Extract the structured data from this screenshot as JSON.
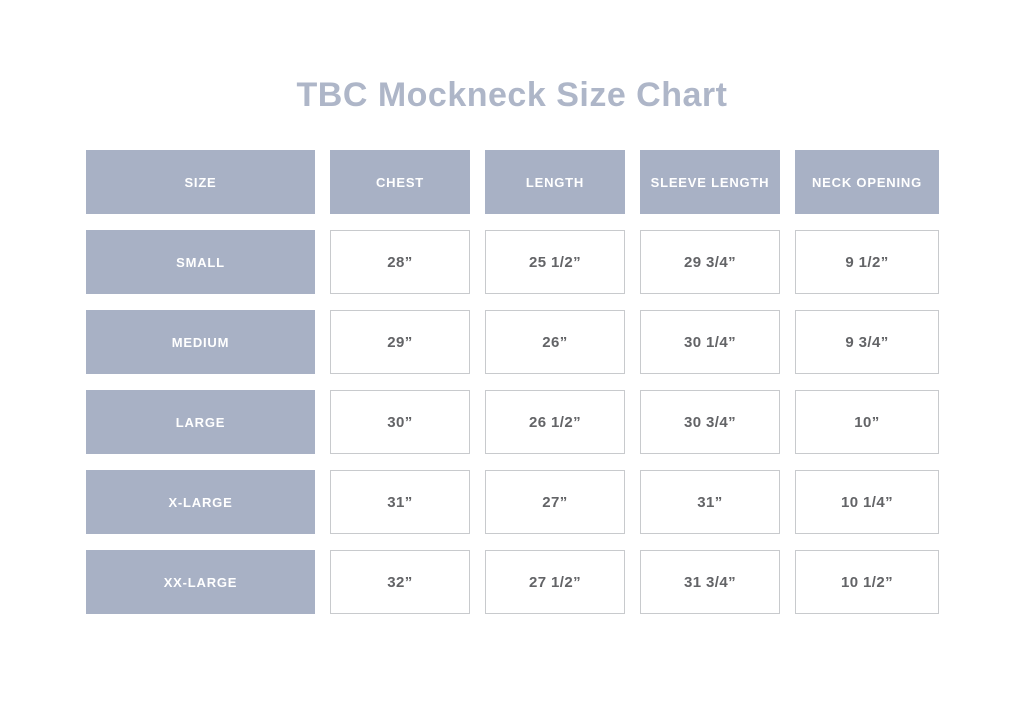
{
  "page": {
    "title": "TBC Mockneck Size Chart"
  },
  "colors": {
    "header_fill": "#a8b1c5",
    "header_text": "#ffffff",
    "title_text": "#aeb6c8",
    "value_text": "#636467",
    "cell_border": "#c8cacd",
    "background": "#ffffff"
  },
  "chart_data": {
    "type": "table",
    "title": "TBC Mockneck Size Chart",
    "columns": [
      "SIZE",
      "CHEST",
      "LENGTH",
      "SLEEVE LENGTH",
      "NECK OPENING"
    ],
    "rows": [
      {
        "size": "SMALL",
        "chest": "28”",
        "length": "25 1/2”",
        "sleeve_length": "29 3/4”",
        "neck_opening": "9 1/2”"
      },
      {
        "size": "MEDIUM",
        "chest": "29”",
        "length": "26”",
        "sleeve_length": "30 1/4”",
        "neck_opening": "9 3/4”"
      },
      {
        "size": "LARGE",
        "chest": "30”",
        "length": "26 1/2”",
        "sleeve_length": "30 3/4”",
        "neck_opening": "10”"
      },
      {
        "size": "X-LARGE",
        "chest": "31”",
        "length": "27”",
        "sleeve_length": "31”",
        "neck_opening": "10 1/4”"
      },
      {
        "size": "XX-LARGE",
        "chest": "32”",
        "length": "27 1/2”",
        "sleeve_length": "31 3/4”",
        "neck_opening": "10 1/2”"
      }
    ]
  }
}
